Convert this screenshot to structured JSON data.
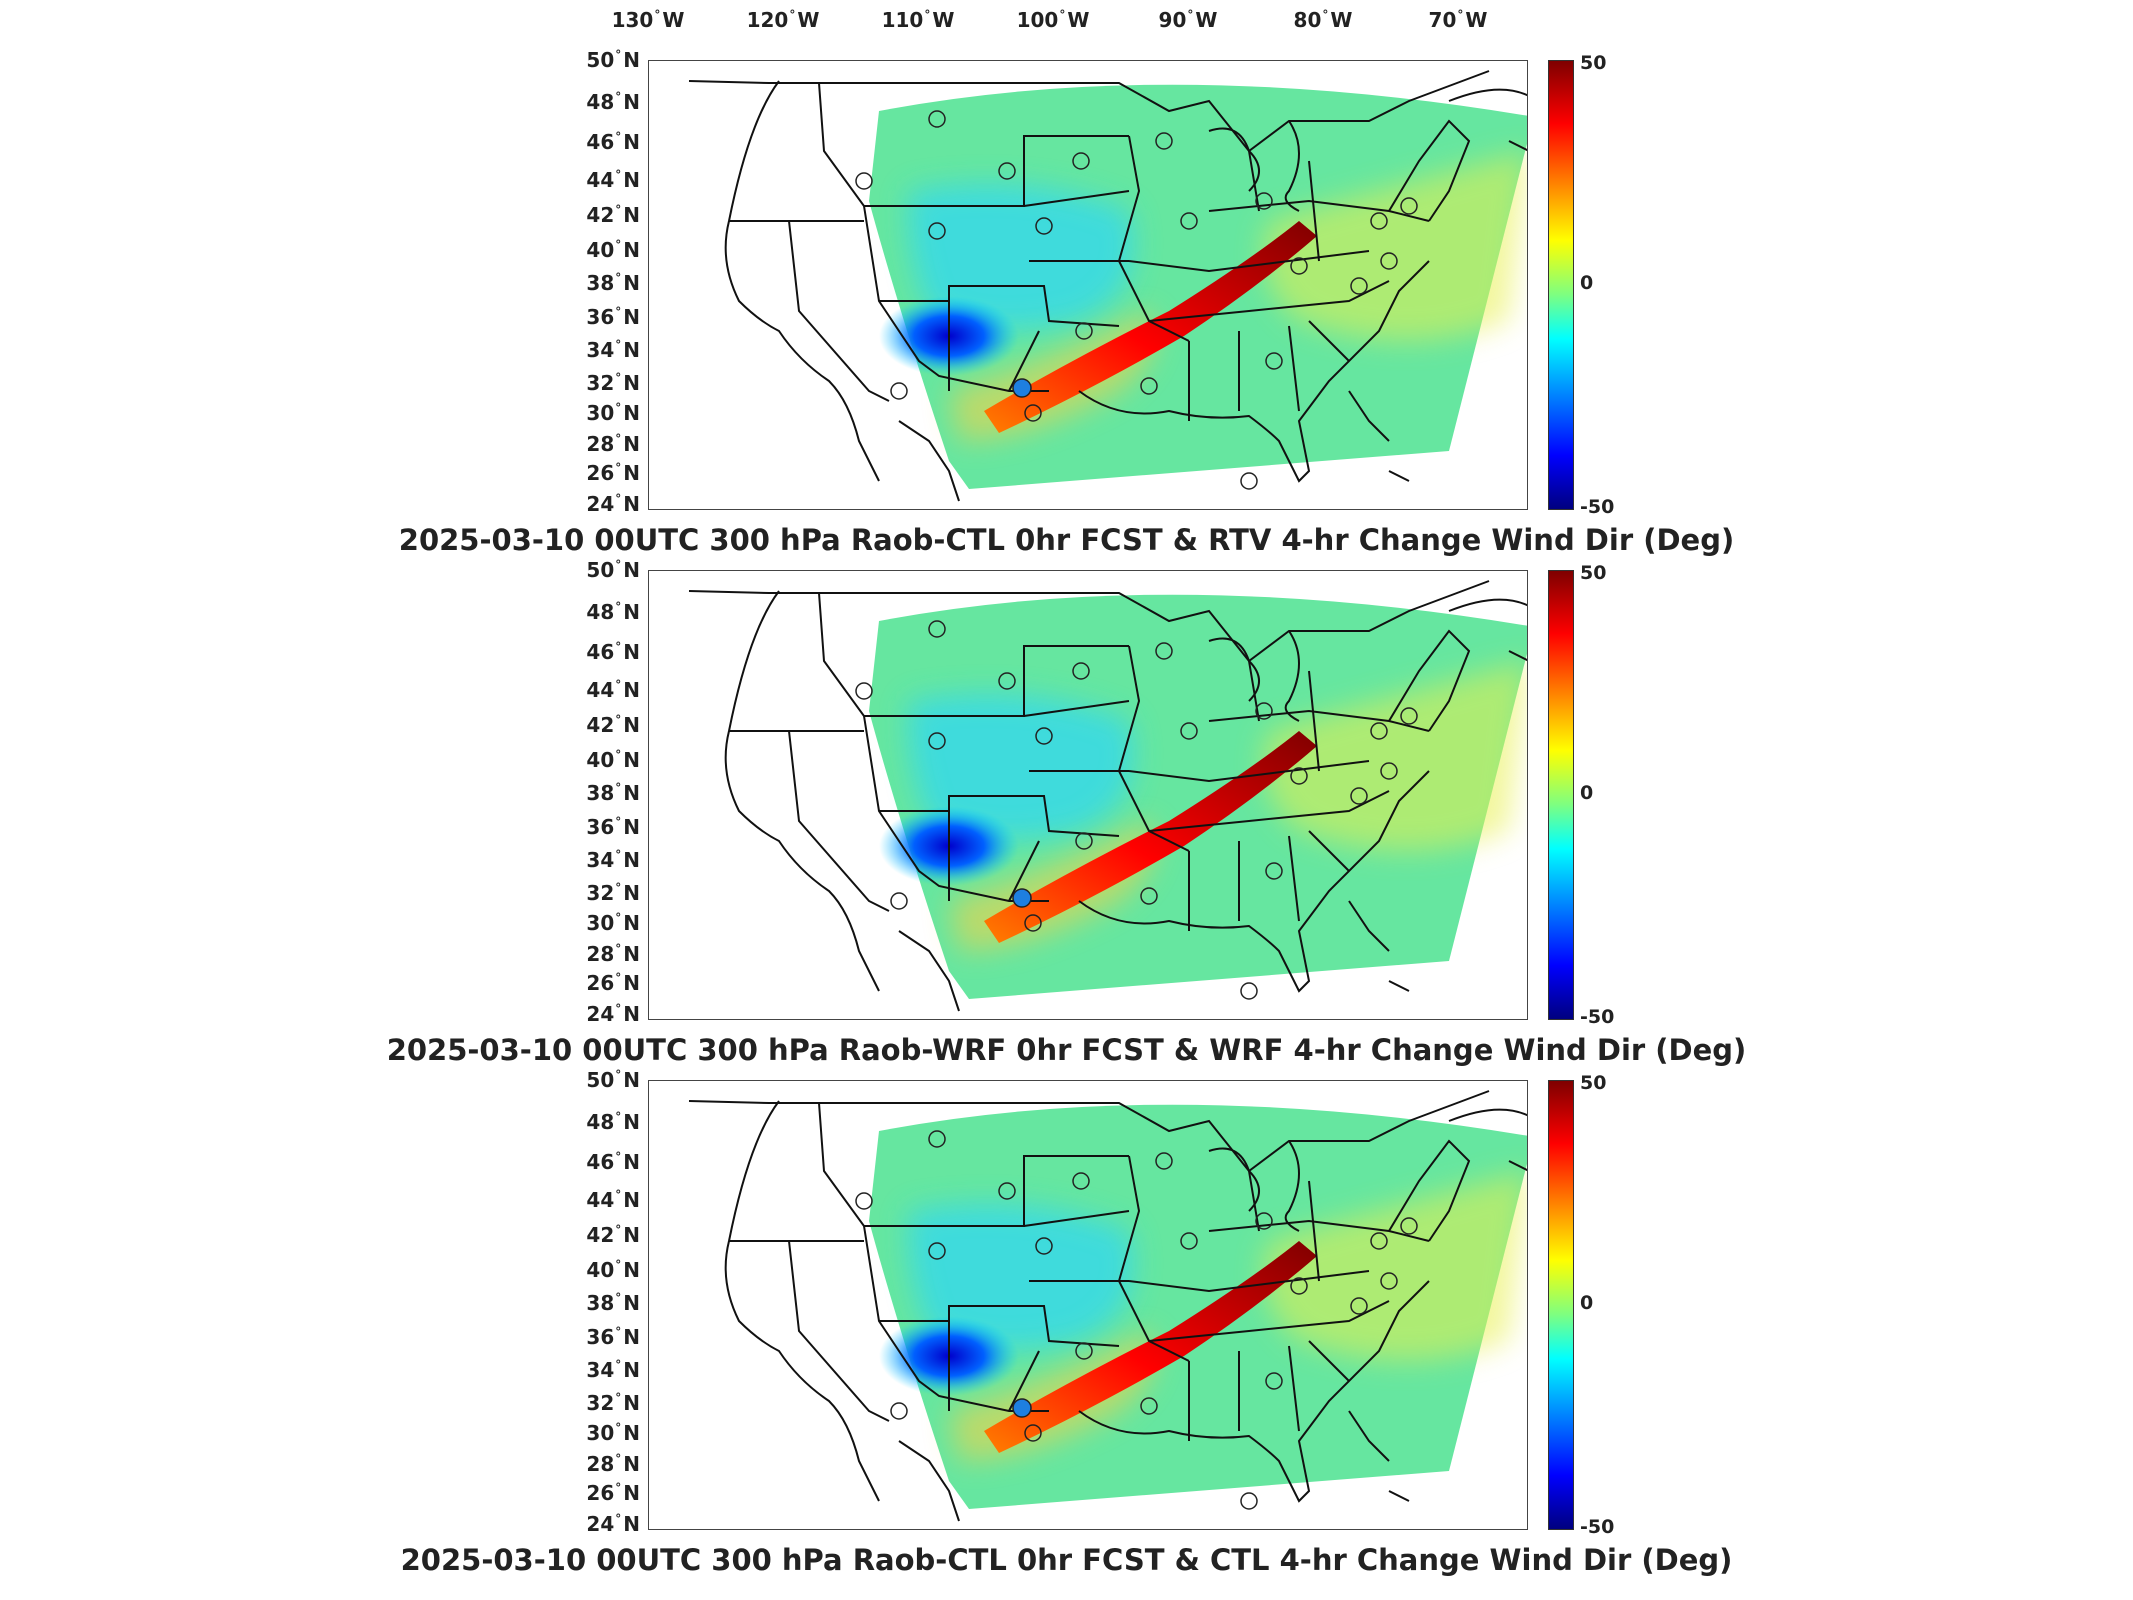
{
  "lon_labels": [
    {
      "deg": "130",
      "hemi": "W"
    },
    {
      "deg": "120",
      "hemi": "W"
    },
    {
      "deg": "110",
      "hemi": "W"
    },
    {
      "deg": "100",
      "hemi": "W"
    },
    {
      "deg": "90",
      "hemi": "W"
    },
    {
      "deg": "80",
      "hemi": "W"
    },
    {
      "deg": "70",
      "hemi": "W"
    }
  ],
  "lat_labels": [
    {
      "deg": "50",
      "hemi": "N"
    },
    {
      "deg": "48",
      "hemi": "N"
    },
    {
      "deg": "46",
      "hemi": "N"
    },
    {
      "deg": "44",
      "hemi": "N"
    },
    {
      "deg": "42",
      "hemi": "N"
    },
    {
      "deg": "40",
      "hemi": "N"
    },
    {
      "deg": "38",
      "hemi": "N"
    },
    {
      "deg": "36",
      "hemi": "N"
    },
    {
      "deg": "34",
      "hemi": "N"
    },
    {
      "deg": "32",
      "hemi": "N"
    },
    {
      "deg": "30",
      "hemi": "N"
    },
    {
      "deg": "28",
      "hemi": "N"
    },
    {
      "deg": "26",
      "hemi": "N"
    },
    {
      "deg": "24",
      "hemi": "N"
    }
  ],
  "colorbar": {
    "max_label": "50",
    "mid_label": "0",
    "min_label": "-50",
    "colors": [
      "#7f0000",
      "#ff0000",
      "#ff7f00",
      "#ffff00",
      "#7fff7f",
      "#00ffff",
      "#007fff",
      "#0000ff",
      "#00007f"
    ]
  },
  "panels": [
    {
      "title": "2025-03-10 00UTC 300 hPa Raob-CTL 0hr FCST & RTV 4-hr Change Wind Dir (Deg)"
    },
    {
      "title": "2025-03-10 00UTC 300 hPa Raob-WRF 0hr FCST & WRF 4-hr Change Wind Dir (Deg)"
    },
    {
      "title": "2025-03-10 00UTC 300 hPa Raob-CTL 0hr FCST & CTL 4-hr Change Wind Dir (Deg)"
    }
  ]
}
